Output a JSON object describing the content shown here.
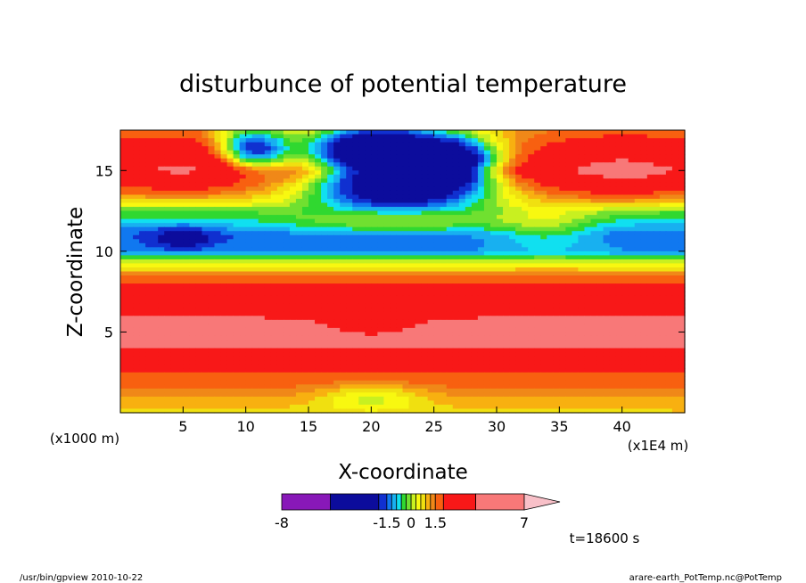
{
  "chart_data": {
    "type": "heatmap",
    "title": "disturbunce of potential temperature",
    "xlabel": "X-coordinate",
    "ylabel": "Z-coordinate",
    "x_unit_label": "(x1E4 m)",
    "y_unit_label": "(x1000 m)",
    "xlim": [
      0,
      45
    ],
    "ylim": [
      0,
      17.5
    ],
    "x_ticks": [
      5,
      10,
      15,
      20,
      25,
      30,
      35,
      40
    ],
    "y_ticks": [
      5,
      10,
      15
    ],
    "time_label": "t=18600 s",
    "colorbar": {
      "tick_labels": [
        {
          "value": -8,
          "label": "-8"
        },
        {
          "value": -1.5,
          "label": "-1.5"
        },
        {
          "value": 0,
          "label": "0"
        },
        {
          "value": 1.5,
          "label": "1.5"
        },
        {
          "value": 7,
          "label": "7"
        }
      ],
      "levels": [
        -8,
        -5,
        -2,
        -1.5,
        -1.2,
        -0.9,
        -0.6,
        -0.3,
        0,
        0.3,
        0.6,
        0.9,
        1.2,
        1.5,
        2,
        4,
        7
      ],
      "colors": [
        "#e020b0",
        "#8818b8",
        "#0c0c9c",
        "#1030d0",
        "#1078f0",
        "#18b0f0",
        "#10e0f0",
        "#30d830",
        "#70e030",
        "#c8f020",
        "#f8f810",
        "#f0e010",
        "#f8b010",
        "#f08818",
        "#f86010",
        "#f81818",
        "#f87878",
        "#f8c0c8"
      ]
    },
    "color_scale": {
      "cmin": -8,
      "cmax": 7,
      "stops": [
        {
          "v": -8,
          "c": "#e020b0"
        },
        {
          "v": -5,
          "c": "#8818b8"
        },
        {
          "v": -2,
          "c": "#0c0c9c"
        },
        {
          "v": -1.5,
          "c": "#1030d0"
        },
        {
          "v": -1.0,
          "c": "#10a8f0"
        },
        {
          "v": -0.6,
          "c": "#10e0f0"
        },
        {
          "v": -0.3,
          "c": "#30d830"
        },
        {
          "v": 0,
          "c": "#80e030"
        },
        {
          "v": 0.3,
          "c": "#f8f810"
        },
        {
          "v": 0.8,
          "c": "#f8c010"
        },
        {
          "v": 1.5,
          "c": "#f08010"
        },
        {
          "v": 3,
          "c": "#f82020"
        },
        {
          "v": 5.5,
          "c": "#f87878"
        },
        {
          "v": 7,
          "c": "#f8c0c8"
        }
      ]
    },
    "layers": [
      {
        "z": 0.3,
        "value": 0.9
      },
      {
        "z": 1.5,
        "value": 1.5
      },
      {
        "z": 3.0,
        "value": 2.2
      },
      {
        "z": 4.0,
        "value": 4.0
      },
      {
        "z": 5.0,
        "value": 5.5
      },
      {
        "z": 6.0,
        "value": 3.8
      },
      {
        "z": 7.0,
        "value": 3.0
      },
      {
        "z": 8.0,
        "value": 2.0
      },
      {
        "z": 8.8,
        "value": 1.0
      },
      {
        "z": 9.3,
        "value": 0.2
      },
      {
        "z": 10.0,
        "value": -1.2
      },
      {
        "z": 11.0,
        "value": -1.5
      },
      {
        "z": 12.0,
        "value": -0.7
      },
      {
        "z": 12.5,
        "value": -0.3
      },
      {
        "z": 13.0,
        "value": 0.6
      },
      {
        "z": 14.0,
        "value": 2.0
      },
      {
        "z": 15.0,
        "value": 3.5
      },
      {
        "z": 16.0,
        "value": 2.5
      },
      {
        "z": 17.0,
        "value": 1.8
      },
      {
        "z": 17.5,
        "value": 1.5
      }
    ],
    "features": [
      {
        "x": 22,
        "z": 14.8,
        "sx": 7.0,
        "sz": 2.3,
        "amp": -6.0
      },
      {
        "x": 10.5,
        "z": 16.2,
        "sx": 3.0,
        "sz": 1.4,
        "amp": -4.0
      },
      {
        "x": 20,
        "z": 16.5,
        "sx": 5.0,
        "sz": 1.2,
        "amp": -3.0
      },
      {
        "x": 27,
        "z": 15.5,
        "sx": 3.5,
        "sz": 1.5,
        "amp": -3.0
      },
      {
        "x": 22,
        "z": 12.0,
        "sx": 8.0,
        "sz": 1.0,
        "amp": 2.0
      },
      {
        "x": 5,
        "z": 10.8,
        "sx": 2.2,
        "sz": 0.6,
        "amp": -1.5
      },
      {
        "x": 40,
        "z": 15.0,
        "sx": 4.5,
        "sz": 1.8,
        "amp": 1.3
      },
      {
        "x": 6,
        "z": 15.5,
        "sx": 5.0,
        "sz": 1.5,
        "amp": 1.0
      },
      {
        "x": 34,
        "z": 11.5,
        "sx": 4.0,
        "sz": 1.4,
        "amp": 1.0
      },
      {
        "x": 20,
        "z": 5.2,
        "sx": 4.5,
        "sz": 0.6,
        "amp": -1.8
      },
      {
        "x": 20,
        "z": 1.0,
        "sx": 4.0,
        "sz": 0.8,
        "amp": -1.0
      }
    ],
    "scales": [
      {
        "label": "(x1000 m)"
      },
      {
        "label": "(x1E4 m)"
      }
    ]
  },
  "footer": {
    "left": "/usr/bin/gpview   2010-10-22",
    "right": "arare-earth_PotTemp.nc@PotTemp"
  }
}
